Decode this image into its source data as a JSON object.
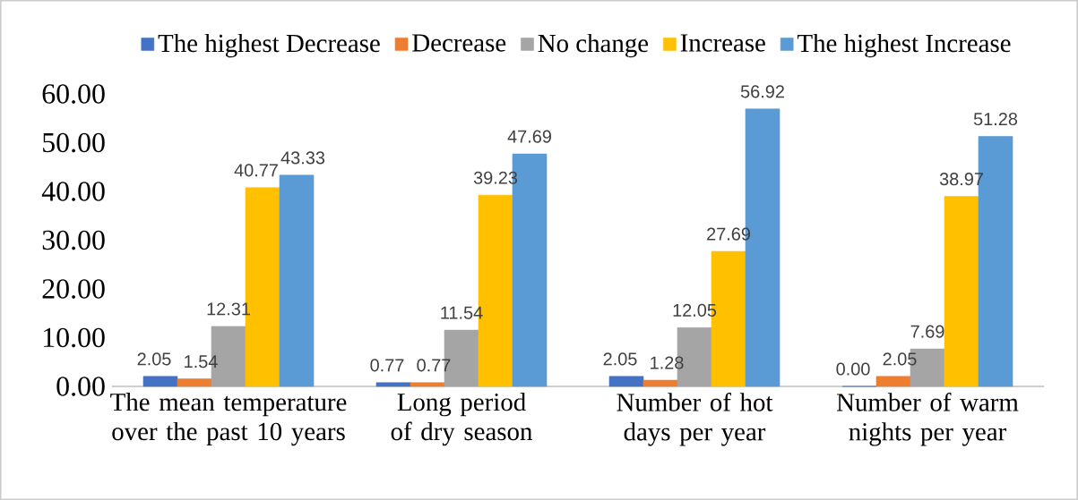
{
  "chart_data": {
    "type": "bar",
    "categories": [
      "The mean temperature over the past 10 years",
      "Long period of dry season",
      "Number of hot days per year",
      "Number of warm nights per year"
    ],
    "series": [
      {
        "name": "The highest Decrease",
        "color": "#4472c4",
        "values": [
          2.05,
          0.77,
          2.05,
          0
        ],
        "value_labels": [
          "2.05",
          "0.77",
          "2.05",
          "0.00"
        ]
      },
      {
        "name": "Decrease",
        "color": "#ed7d31",
        "values": [
          1.54,
          0.77,
          1.28,
          2.05
        ],
        "value_labels": [
          "1.54",
          "0.77",
          "1.28",
          "2.05"
        ]
      },
      {
        "name": "No change",
        "color": "#a5a5a5",
        "values": [
          12.31,
          11.54,
          12.05,
          7.69
        ],
        "value_labels": [
          "12.31",
          "11.54",
          "12.05",
          "7.69"
        ]
      },
      {
        "name": "Increase",
        "color": "#ffc000",
        "values": [
          40.77,
          39.23,
          27.69,
          38.97
        ],
        "value_labels": [
          "40.77",
          "39.23",
          "27.69",
          "38.97"
        ]
      },
      {
        "name": "The highest Increase",
        "color": "#5b9bd5",
        "values": [
          43.33,
          47.69,
          56.92,
          51.28
        ],
        "value_labels": [
          "43.33",
          "47.69",
          "56.92",
          "51.28"
        ]
      }
    ],
    "ylim": [
      0,
      60
    ],
    "yticks": [
      {
        "value": 0,
        "label": "0.00"
      },
      {
        "value": 10,
        "label": "10.00"
      },
      {
        "value": 20,
        "label": "20.00"
      },
      {
        "value": 30,
        "label": "30.00"
      },
      {
        "value": 40,
        "label": "40.00"
      },
      {
        "value": 50,
        "label": "50.00"
      },
      {
        "value": 60,
        "label": "60.00"
      }
    ],
    "legend": "top"
  }
}
